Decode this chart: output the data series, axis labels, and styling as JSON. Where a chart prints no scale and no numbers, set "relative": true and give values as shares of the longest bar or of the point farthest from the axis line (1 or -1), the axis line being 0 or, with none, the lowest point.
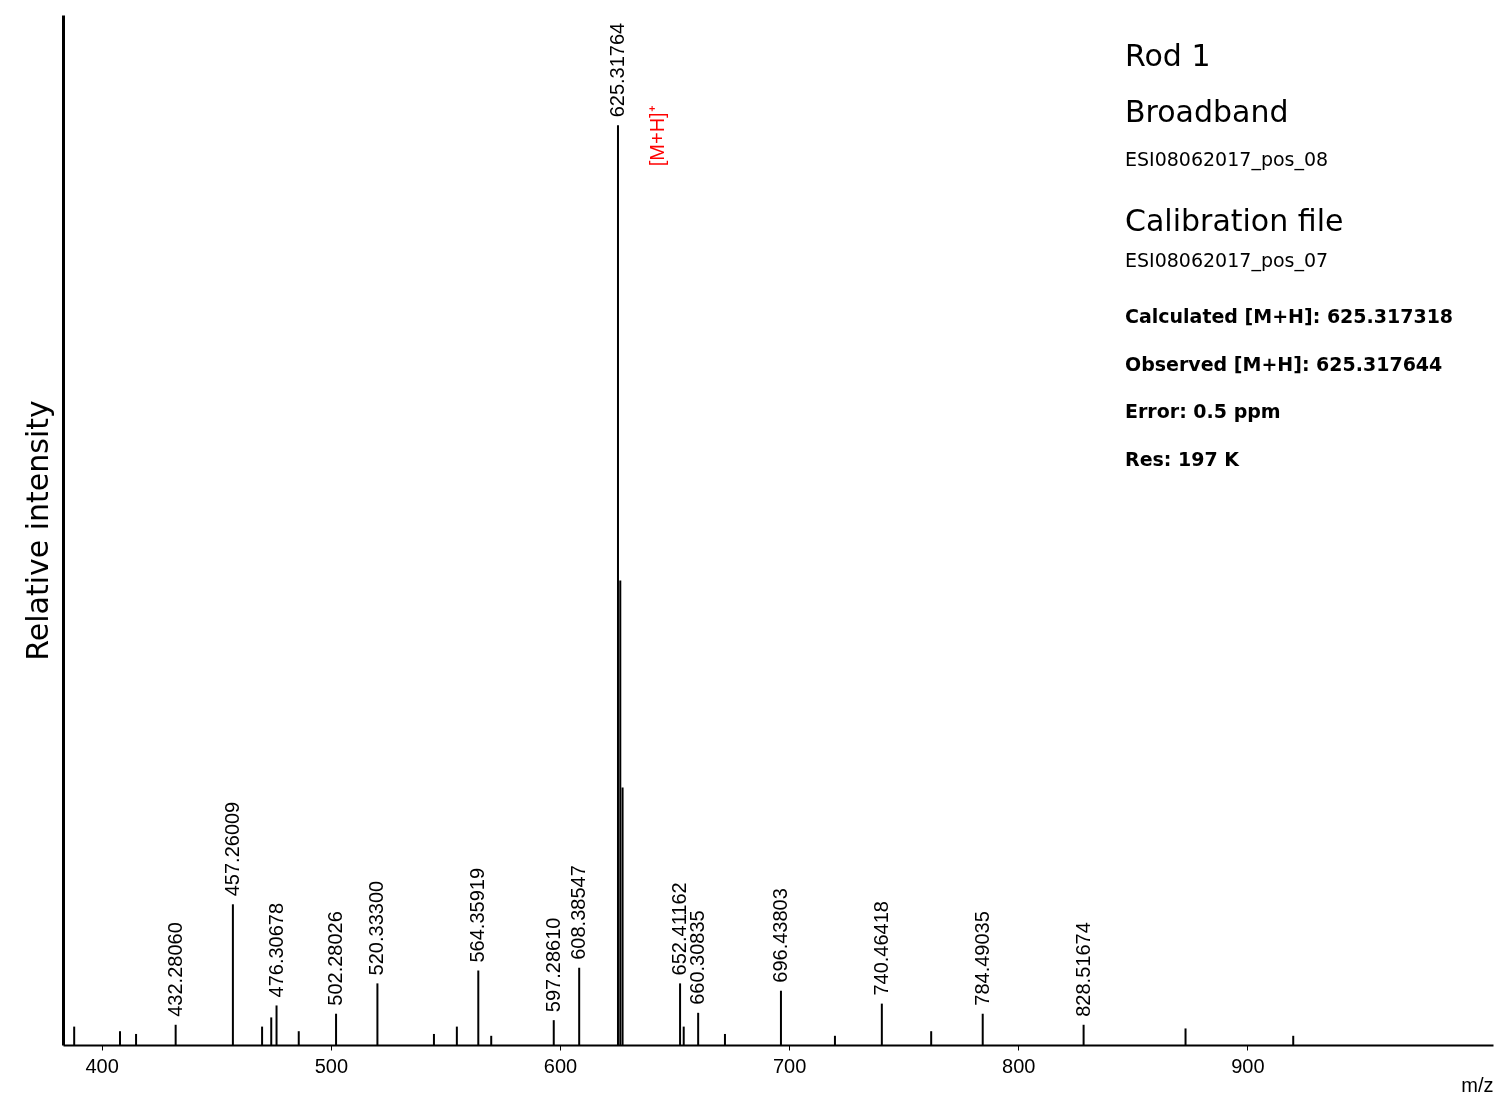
{
  "chart_data": {
    "type": "bar",
    "relative": true,
    "ylabel": "Relative intensity",
    "xlabel": "m/z",
    "title": "Rod 1",
    "subtitle": "Broadband",
    "x": [
      388,
      408,
      415,
      432.2806,
      457.26009,
      470,
      474,
      476.30678,
      486,
      502.28026,
      520.33,
      545,
      555,
      564.35919,
      570,
      597.2861,
      608.38547,
      625.31764,
      626.32,
      627.32,
      652.41162,
      654,
      660.30835,
      672,
      696.43803,
      720,
      740.46418,
      762,
      784.49035,
      828.51674,
      873,
      920
    ],
    "series": [
      {
        "color": "#000000",
        "values": [
          0.02,
          0.015,
          0.012,
          0.022,
          0.153,
          0.02,
          0.03,
          0.043,
          0.015,
          0.034,
          0.067,
          0.012,
          0.02,
          0.081,
          0.01,
          0.027,
          0.084,
          1,
          0.505,
          0.28,
          0.067,
          0.02,
          0.035,
          0.012,
          0.059,
          0.01,
          0.045,
          0.015,
          0.034,
          0.022,
          0.018,
          0.01
        ]
      }
    ],
    "xlim": [
      385.3,
      1005
    ],
    "xticks": [
      400,
      500,
      600,
      700,
      800,
      900
    ],
    "grid": false,
    "annotations": [
      "ESI08062017_pos_08",
      "Calibration file",
      "ESI08062017_pos_07",
      "Calculated [M+H]: 625.317318",
      "Observed [M+H]: 625.317644",
      "Error: 0.5 ppm",
      "Res: 197 K",
      {
        "text": "432.28060",
        "x": 432.2806,
        "y": 0.022
      },
      {
        "text": "457.26009",
        "x": 457.26009,
        "y": 0.153
      },
      {
        "text": "476.30678",
        "x": 476.30678,
        "y": 0.043
      },
      {
        "text": "502.28026",
        "x": 502.28026,
        "y": 0.034
      },
      {
        "text": "520.33300",
        "x": 520.33,
        "y": 0.067
      },
      {
        "text": "564.35919",
        "x": 564.35919,
        "y": 0.081
      },
      {
        "text": "597.28610",
        "x": 597.2861,
        "y": 0.027
      },
      {
        "text": "608.38547",
        "x": 608.38547,
        "y": 0.084
      },
      {
        "text": "625.31764",
        "x": 625.31764,
        "y": 1
      },
      {
        "text": "[M+H]⁺",
        "x": 625.31764,
        "y": 1
      },
      {
        "text": "652.41162",
        "x": 652.41162,
        "y": 0.067
      },
      {
        "text": "660.30835",
        "x": 660.30835,
        "y": 0.035
      },
      {
        "text": "696.43803",
        "x": 696.43803,
        "y": 0.059
      },
      {
        "text": "740.46418",
        "x": 740.46418,
        "y": 0.045
      },
      {
        "text": "784.49035",
        "x": 784.49035,
        "y": 0.034
      },
      {
        "text": "828.51674",
        "x": 828.51674,
        "y": 0.022
      }
    ]
  }
}
